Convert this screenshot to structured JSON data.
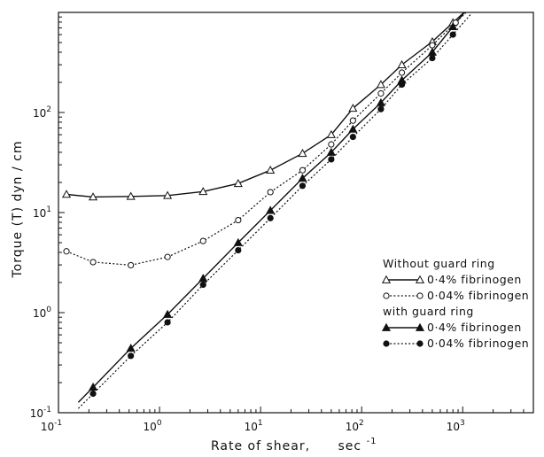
{
  "chart_data": {
    "type": "line",
    "x_scale": "log",
    "y_scale": "log",
    "xlim": [
      0.1,
      5000
    ],
    "ylim": [
      0.1,
      1000
    ],
    "xlabel_main": "Rate of shear,",
    "xlabel_unit_base": "sec",
    "xlabel_unit_exp": "-1",
    "ylabel": "Torque (T) dyn / cm",
    "x_ticks": [
      {
        "base": "10",
        "exp": "-1",
        "value": 0.1
      },
      {
        "base": "10",
        "exp": "0",
        "value": 1
      },
      {
        "base": "10",
        "exp": "1",
        "value": 10
      },
      {
        "base": "10",
        "exp": "2",
        "value": 100
      },
      {
        "base": "10",
        "exp": "3",
        "value": 1000
      }
    ],
    "y_ticks": [
      {
        "base": "10",
        "exp": "-1",
        "value": 0.1
      },
      {
        "base": "10",
        "exp": "0",
        "value": 1
      },
      {
        "base": "10",
        "exp": "1",
        "value": 10
      },
      {
        "base": "10",
        "exp": "2",
        "value": 100
      }
    ],
    "grid": false,
    "legend_position": "lower-right",
    "legend_groups": [
      {
        "title": "Without guard ring",
        "series_indices": [
          0,
          1
        ]
      },
      {
        "title": "with guard ring",
        "series_indices": [
          2,
          3
        ]
      }
    ],
    "series": [
      {
        "name": "0·4% fibrinogen",
        "marker": "open-triangle",
        "line": "solid",
        "points": [
          [
            0.12,
            15.2
          ],
          [
            0.22,
            14.3
          ],
          [
            0.52,
            14.5
          ],
          [
            1.2,
            14.8
          ],
          [
            2.7,
            16.2
          ],
          [
            6.0,
            19.5
          ],
          [
            12.5,
            26.5
          ],
          [
            26.0,
            39.0
          ],
          [
            50.0,
            60.0
          ],
          [
            82.0,
            110.0
          ],
          [
            155.0,
            190.0
          ],
          [
            250.0,
            300.0
          ],
          [
            500.0,
            510.0
          ],
          [
            800.0,
            790.0
          ]
        ]
      },
      {
        "name": "0·04% fibrinogen",
        "marker": "open-circle",
        "line": "dotted",
        "points": [
          [
            0.12,
            4.1
          ],
          [
            0.22,
            3.2
          ],
          [
            0.52,
            2.98
          ],
          [
            1.2,
            3.6
          ],
          [
            2.7,
            5.2
          ],
          [
            6.0,
            8.4
          ],
          [
            12.5,
            16.0
          ],
          [
            26.0,
            26.5
          ],
          [
            50.0,
            48.0
          ],
          [
            82.0,
            83.0
          ],
          [
            155.0,
            155.0
          ],
          [
            250.0,
            250.0
          ],
          [
            500.0,
            470.0
          ],
          [
            850.0,
            790.0
          ]
        ]
      },
      {
        "name": "0·4% fibrinogen",
        "marker": "filled-triangle",
        "line": "solid",
        "points": [
          [
            0.22,
            0.18
          ],
          [
            0.52,
            0.44
          ],
          [
            1.2,
            0.96
          ],
          [
            2.7,
            2.2
          ],
          [
            6.0,
            5.0
          ],
          [
            12.5,
            10.5
          ],
          [
            26.0,
            22.0
          ],
          [
            50.0,
            40.0
          ],
          [
            82.0,
            68.0
          ],
          [
            155.0,
            125.0
          ],
          [
            250.0,
            210.0
          ],
          [
            500.0,
            400.0
          ],
          [
            800.0,
            720.0
          ]
        ]
      },
      {
        "name": "0·04% fibrinogen",
        "marker": "filled-circle",
        "line": "dotted",
        "points": [
          [
            0.22,
            0.155
          ],
          [
            0.52,
            0.37
          ],
          [
            1.2,
            0.8
          ],
          [
            2.7,
            1.9
          ],
          [
            6.0,
            4.2
          ],
          [
            12.5,
            8.8
          ],
          [
            26.0,
            18.5
          ],
          [
            50.0,
            34.0
          ],
          [
            82.0,
            57.0
          ],
          [
            155.0,
            108.0
          ],
          [
            250.0,
            190.0
          ],
          [
            500.0,
            350.0
          ],
          [
            800.0,
            600.0
          ]
        ]
      }
    ]
  }
}
